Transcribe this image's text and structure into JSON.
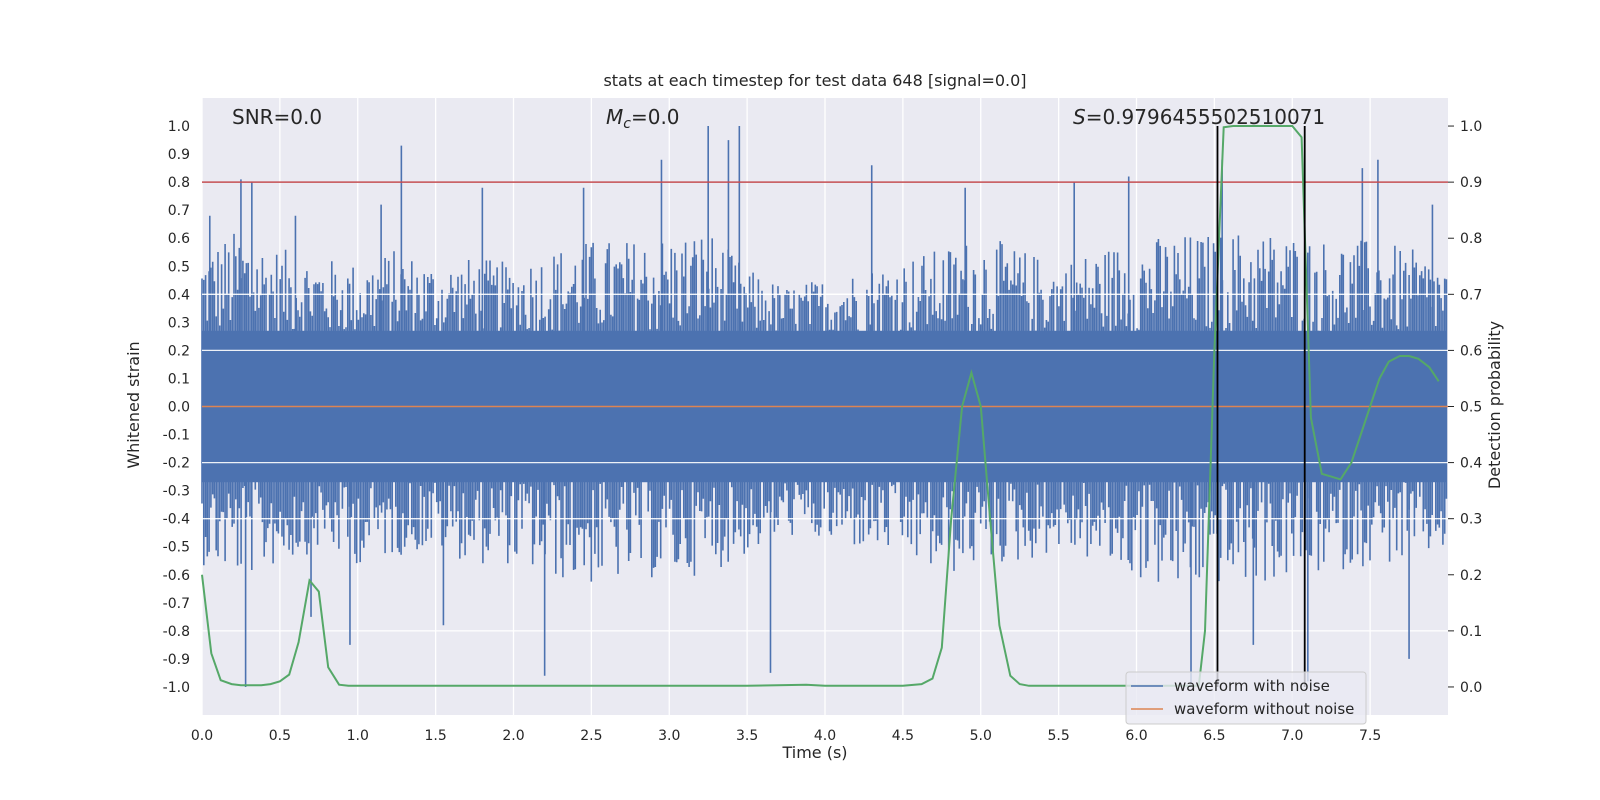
{
  "chart_data": {
    "type": "line",
    "title": "stats at each timestep for test data 648 [signal=0.0]",
    "xlabel": "Time (s)",
    "ylabel_left": "Whitened strain",
    "ylabel_right": "Detection probability",
    "xlim": [
      0.0,
      8.0
    ],
    "ylim_left": [
      -1.1,
      1.1
    ],
    "ylim_right": [
      -0.05,
      1.05
    ],
    "x_ticks": [
      "0.0",
      "0.5",
      "1.0",
      "1.5",
      "2.0",
      "2.5",
      "3.0",
      "3.5",
      "4.0",
      "4.5",
      "5.0",
      "5.5",
      "6.0",
      "6.5",
      "7.0",
      "7.5"
    ],
    "y_ticks_left": [
      "1.0",
      "0.9",
      "0.8",
      "0.7",
      "0.6",
      "0.5",
      "0.4",
      "0.3",
      "0.2",
      "0.1",
      "0.0",
      "-0.1",
      "-0.2",
      "-0.3",
      "-0.4",
      "-0.5",
      "-0.6",
      "-0.7",
      "-0.8",
      "-0.9",
      "-1.0"
    ],
    "y_ticks_right": [
      "1.0",
      "0.9",
      "0.8",
      "0.7",
      "0.6",
      "0.5",
      "0.4",
      "0.3",
      "0.2",
      "0.1",
      "0.0"
    ],
    "grid": true,
    "annotations": {
      "snr": "SNR=0.0",
      "mc_symbol": "M",
      "mc_sub": "c",
      "mc_value": "=0.0",
      "s_symbol": "S",
      "s_value": "=0.9796455502510071"
    },
    "threshold_line": {
      "y": 0.8,
      "color": "#c44e52"
    },
    "zero_line": {
      "y": 0.0,
      "color": "#dd8452"
    },
    "detection_window": {
      "x_start": 6.52,
      "x_end": 7.08,
      "color": "#000000"
    },
    "noise_envelope": {
      "color": "#4c72b0",
      "note_free": true,
      "t": [
        0.0,
        0.25,
        0.5,
        0.75,
        1.0,
        1.25,
        1.5,
        1.75,
        2.0,
        2.25,
        2.5,
        2.75,
        3.0,
        3.25,
        3.5,
        3.75,
        4.0,
        4.25,
        4.5,
        4.75,
        5.0,
        5.25,
        5.5,
        5.75,
        6.0,
        6.25,
        6.5,
        6.75,
        7.0,
        7.25,
        7.5,
        7.75,
        7.99
      ],
      "upper": [
        0.55,
        0.62,
        0.55,
        0.52,
        0.5,
        0.55,
        0.5,
        0.52,
        0.5,
        0.55,
        0.58,
        0.58,
        0.6,
        0.62,
        0.48,
        0.42,
        0.45,
        0.48,
        0.52,
        0.55,
        0.6,
        0.55,
        0.5,
        0.55,
        0.58,
        0.6,
        0.6,
        0.62,
        0.6,
        0.58,
        0.58,
        0.55,
        0.5
      ],
      "lower": [
        -0.55,
        -0.6,
        -0.55,
        -0.5,
        -0.55,
        -0.52,
        -0.5,
        -0.55,
        -0.55,
        -0.6,
        -0.62,
        -0.6,
        -0.6,
        -0.58,
        -0.52,
        -0.45,
        -0.48,
        -0.5,
        -0.52,
        -0.6,
        -0.55,
        -0.55,
        -0.5,
        -0.55,
        -0.6,
        -0.65,
        -0.62,
        -0.62,
        -0.6,
        -0.58,
        -0.55,
        -0.55,
        -0.5
      ]
    },
    "noise_spikes": [
      {
        "x": 0.05,
        "y": 0.68
      },
      {
        "x": 0.25,
        "y": 0.81
      },
      {
        "x": 0.28,
        "y": -1.0
      },
      {
        "x": 0.32,
        "y": 0.8
      },
      {
        "x": 0.6,
        "y": 0.68
      },
      {
        "x": 0.7,
        "y": -0.75
      },
      {
        "x": 0.95,
        "y": -0.85
      },
      {
        "x": 1.15,
        "y": 0.72
      },
      {
        "x": 1.28,
        "y": 0.93
      },
      {
        "x": 1.55,
        "y": -0.78
      },
      {
        "x": 1.8,
        "y": 0.78
      },
      {
        "x": 2.2,
        "y": -0.96
      },
      {
        "x": 2.45,
        "y": 0.78
      },
      {
        "x": 2.95,
        "y": 0.88
      },
      {
        "x": 3.25,
        "y": 1.0
      },
      {
        "x": 3.38,
        "y": 0.95
      },
      {
        "x": 3.45,
        "y": 1.0
      },
      {
        "x": 3.65,
        "y": -0.95
      },
      {
        "x": 4.3,
        "y": 0.86
      },
      {
        "x": 4.9,
        "y": 0.78
      },
      {
        "x": 5.6,
        "y": 0.8
      },
      {
        "x": 5.95,
        "y": 0.82
      },
      {
        "x": 6.35,
        "y": -1.0
      },
      {
        "x": 6.55,
        "y": 0.88
      },
      {
        "x": 6.75,
        "y": -0.85
      },
      {
        "x": 7.1,
        "y": -0.98
      },
      {
        "x": 7.45,
        "y": 0.85
      },
      {
        "x": 7.55,
        "y": 0.88
      },
      {
        "x": 7.75,
        "y": -0.9
      },
      {
        "x": 7.9,
        "y": 0.72
      }
    ],
    "series": [
      {
        "name": "waveform with noise",
        "color": "#4c72b0",
        "axis": "left"
      },
      {
        "name": "waveform without noise",
        "color": "#dd8452",
        "axis": "left",
        "x": [
          0.0,
          8.0
        ],
        "y": [
          0.0,
          0.0
        ]
      },
      {
        "color": "#55a868",
        "axis": "right",
        "x": [
          0.0,
          0.06,
          0.12,
          0.19,
          0.25,
          0.31,
          0.38,
          0.44,
          0.5,
          0.56,
          0.62,
          0.69,
          0.75,
          0.81,
          0.88,
          0.94,
          1.0,
          1.5,
          2.0,
          2.5,
          3.0,
          3.5,
          3.88,
          4.0,
          4.5,
          4.62,
          4.69,
          4.75,
          4.81,
          4.88,
          4.94,
          5.0,
          5.06,
          5.12,
          5.19,
          5.25,
          5.31,
          5.5,
          6.0,
          6.4,
          6.44,
          6.5,
          6.56,
          6.62,
          6.75,
          6.88,
          7.0,
          7.06,
          7.12,
          7.19,
          7.25,
          7.31,
          7.38,
          7.44,
          7.5,
          7.56,
          7.62,
          7.69,
          7.75,
          7.81,
          7.88,
          7.94
        ],
        "y": [
          0.2,
          0.06,
          0.012,
          0.005,
          0.003,
          0.003,
          0.003,
          0.005,
          0.01,
          0.022,
          0.08,
          0.19,
          0.17,
          0.035,
          0.004,
          0.002,
          0.002,
          0.002,
          0.002,
          0.002,
          0.002,
          0.002,
          0.004,
          0.002,
          0.002,
          0.005,
          0.015,
          0.07,
          0.3,
          0.5,
          0.56,
          0.5,
          0.3,
          0.11,
          0.02,
          0.005,
          0.002,
          0.002,
          0.002,
          0.002,
          0.1,
          0.6,
          0.998,
          1.0,
          1.0,
          1.0,
          1.0,
          0.98,
          0.48,
          0.38,
          0.375,
          0.37,
          0.4,
          0.45,
          0.5,
          0.55,
          0.58,
          0.59,
          0.59,
          0.585,
          0.57,
          0.545
        ]
      }
    ],
    "legend": {
      "placement": "lower-right",
      "entries": [
        "waveform with noise",
        "waveform without noise"
      ]
    }
  }
}
